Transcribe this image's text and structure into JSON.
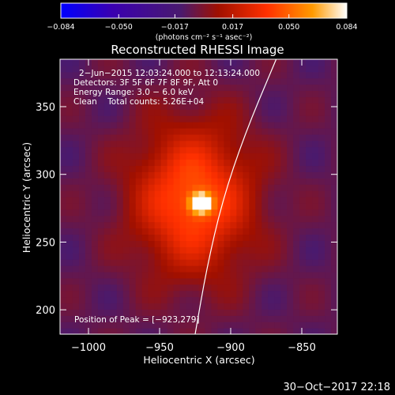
{
  "chart_data": {
    "type": "heatmap",
    "title": "Reconstructed RHESSI Image",
    "xlabel": "Heliocentric X (arcsec)",
    "ylabel": "Heliocentric Y (arcsec)",
    "xlim": [
      -1020,
      -825
    ],
    "ylim": [
      182,
      385
    ],
    "x_ticks": [
      -1000,
      -950,
      -900,
      -850
    ],
    "x_tick_labels": [
      "−1000",
      "−950",
      "−900",
      "−850"
    ],
    "y_ticks": [
      200,
      250,
      300,
      350
    ],
    "y_tick_labels": [
      "200",
      "250",
      "300",
      "350"
    ],
    "colorbar": {
      "range": [
        -0.084,
        0.084
      ],
      "ticks": [
        -0.084,
        -0.05,
        -0.017,
        0.017,
        0.05,
        0.084
      ],
      "tick_labels": [
        "−0.084",
        "−0.050",
        "−0.017",
        "0.017",
        "0.050",
        "0.084"
      ],
      "units_label": "(photons cm⁻² s⁻¹ asec⁻²)",
      "colors": [
        "#0000ff",
        "#3a00b0",
        "#4a1a6e",
        "#a01000",
        "#ff3000",
        "#ff9a00",
        "#ffffff"
      ]
    },
    "annotations": [
      "2−Jun−2015 12:03:24.000 to 12:13:24.000",
      "Detectors: 3F 5F 6F 7F 8F 9F, Att 0",
      "Energy Range: 3.0 − 6.0 keV",
      "Clean    Total counts: 5.26E+04"
    ],
    "peak_label": "Position of Peak = [−923,279]",
    "peak": [
      -923,
      279
    ],
    "sources": [
      {
        "x": -926,
        "y": 282,
        "rx": 52,
        "ry": 68,
        "amp": 0.055
      },
      {
        "x": -921,
        "y": 279,
        "rx": 9,
        "ry": 9,
        "amp": 0.084
      }
    ],
    "limb_curve": [
      [
        -925,
        182
      ],
      [
        -917,
        230
      ],
      [
        -906,
        280
      ],
      [
        -890,
        330
      ],
      [
        -868,
        385
      ]
    ]
  },
  "timestamp": "30−Oct−2017 22:18"
}
